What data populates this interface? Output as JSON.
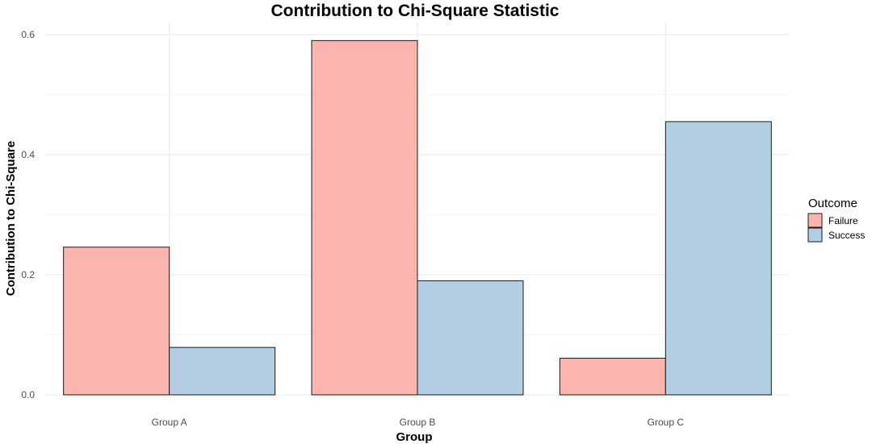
{
  "chart_data": {
    "type": "bar",
    "title": "Contribution to Chi-Square Statistic",
    "xlabel": "Group",
    "ylabel": "Contribution to Chi-Square",
    "categories": [
      "Group A",
      "Group B",
      "Group C"
    ],
    "series": [
      {
        "name": "Failure",
        "values": [
          0.246,
          0.59,
          0.061
        ],
        "color": "#FBB4AE"
      },
      {
        "name": "Success",
        "values": [
          0.079,
          0.19,
          0.455
        ],
        "color": "#B3CDE3"
      }
    ],
    "ylim": [
      0,
      0.62
    ],
    "yticks": [
      0,
      0.2,
      0.4,
      0.6
    ],
    "ytick_labels": [
      "0.0",
      "0.2",
      "0.4",
      "0.6"
    ],
    "legend": {
      "title": "Outcome",
      "position": "right"
    },
    "grid": true
  }
}
